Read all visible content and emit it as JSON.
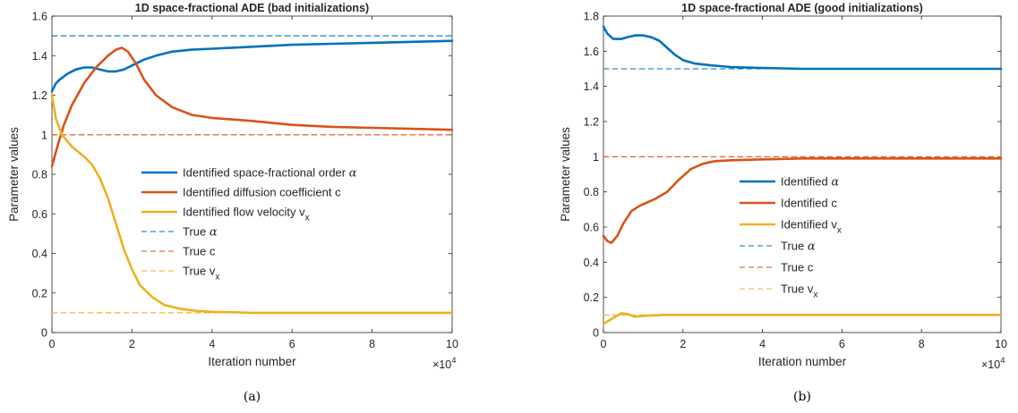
{
  "chart_data": [
    {
      "type": "line",
      "title": "1D space-fractional ADE (bad initializations)",
      "xlabel": "Iteration number",
      "ylabel": "Parameter values",
      "x_multiplier": "×10",
      "x_exponent": "4",
      "caption": "(a)",
      "xlim": [
        0,
        10
      ],
      "ylim": [
        0,
        1.6
      ],
      "xticks": [
        "0",
        "2",
        "4",
        "6",
        "8",
        "10"
      ],
      "yticks": [
        "0",
        "0.2",
        "0.4",
        "0.6",
        "0.8",
        "1",
        "1.2",
        "1.4",
        "1.6"
      ],
      "legend_position": "center-right",
      "series": [
        {
          "name": "Identified space-fractional order α",
          "legend_main": "Identified space-fractional order ",
          "legend_greek": "α",
          "legend_sub": "",
          "style": "solid",
          "color": "#0072BD",
          "points": [
            [
              0,
              1.22
            ],
            [
              0.1,
              1.26
            ],
            [
              0.2,
              1.28
            ],
            [
              0.4,
              1.31
            ],
            [
              0.6,
              1.33
            ],
            [
              0.8,
              1.34
            ],
            [
              1.0,
              1.34
            ],
            [
              1.2,
              1.33
            ],
            [
              1.4,
              1.32
            ],
            [
              1.6,
              1.32
            ],
            [
              1.8,
              1.33
            ],
            [
              2.0,
              1.35
            ],
            [
              2.3,
              1.38
            ],
            [
              2.6,
              1.4
            ],
            [
              3.0,
              1.42
            ],
            [
              3.5,
              1.43
            ],
            [
              4,
              1.435
            ],
            [
              5,
              1.445
            ],
            [
              6,
              1.455
            ],
            [
              7,
              1.46
            ],
            [
              8,
              1.465
            ],
            [
              9,
              1.47
            ],
            [
              10,
              1.475
            ]
          ]
        },
        {
          "name": "Identified diffusion coefficient c",
          "legend_main": "Identified diffusion coefficient c",
          "legend_greek": "",
          "legend_sub": "",
          "style": "solid",
          "color": "#D95319",
          "points": [
            [
              0,
              0.84
            ],
            [
              0.15,
              0.95
            ],
            [
              0.3,
              1.05
            ],
            [
              0.5,
              1.15
            ],
            [
              0.8,
              1.26
            ],
            [
              1.1,
              1.34
            ],
            [
              1.4,
              1.4
            ],
            [
              1.6,
              1.43
            ],
            [
              1.75,
              1.44
            ],
            [
              1.9,
              1.42
            ],
            [
              2.1,
              1.36
            ],
            [
              2.3,
              1.28
            ],
            [
              2.6,
              1.2
            ],
            [
              3.0,
              1.14
            ],
            [
              3.5,
              1.1
            ],
            [
              4,
              1.085
            ],
            [
              5,
              1.07
            ],
            [
              6,
              1.05
            ],
            [
              7,
              1.04
            ],
            [
              8,
              1.035
            ],
            [
              9,
              1.03
            ],
            [
              10,
              1.025
            ]
          ]
        },
        {
          "name": "Identified flow velocity v_x",
          "legend_main": "Identified flow velocity v",
          "legend_greek": "",
          "legend_sub": "x",
          "style": "solid",
          "color": "#EDB120",
          "points": [
            [
              0,
              1.2
            ],
            [
              0.1,
              1.08
            ],
            [
              0.25,
              1.0
            ],
            [
              0.5,
              0.94
            ],
            [
              0.8,
              0.89
            ],
            [
              1.0,
              0.85
            ],
            [
              1.2,
              0.78
            ],
            [
              1.4,
              0.68
            ],
            [
              1.6,
              0.55
            ],
            [
              1.8,
              0.42
            ],
            [
              2.0,
              0.32
            ],
            [
              2.2,
              0.24
            ],
            [
              2.5,
              0.18
            ],
            [
              2.8,
              0.14
            ],
            [
              3.2,
              0.12
            ],
            [
              3.6,
              0.11
            ],
            [
              4,
              0.105
            ],
            [
              5,
              0.1
            ],
            [
              6,
              0.1
            ],
            [
              8,
              0.1
            ],
            [
              10,
              0.1
            ]
          ]
        },
        {
          "name": "True α",
          "legend_main": "True ",
          "legend_greek": "α",
          "legend_sub": "",
          "style": "dashed",
          "color": "#0072BD",
          "points": [
            [
              0,
              1.5
            ],
            [
              10,
              1.5
            ]
          ]
        },
        {
          "name": "True c",
          "legend_main": "True c",
          "legend_greek": "",
          "legend_sub": "",
          "style": "dashed",
          "color": "#D95319",
          "points": [
            [
              0,
              1.0
            ],
            [
              10,
              1.0
            ]
          ]
        },
        {
          "name": "True v_x",
          "legend_main": "True v",
          "legend_greek": "",
          "legend_sub": "x",
          "style": "dashed",
          "color": "#EDB120",
          "points": [
            [
              0,
              0.1
            ],
            [
              10,
              0.1
            ]
          ]
        }
      ]
    },
    {
      "type": "line",
      "title": "1D space-fractional ADE (good initializations)",
      "xlabel": "Iteration number",
      "ylabel": "Parameter values",
      "x_multiplier": "×10",
      "x_exponent": "4",
      "caption": "(b)",
      "xlim": [
        0,
        10
      ],
      "ylim": [
        0,
        1.8
      ],
      "xticks": [
        "0",
        "2",
        "4",
        "6",
        "8",
        "10"
      ],
      "yticks": [
        "0",
        "0.2",
        "0.4",
        "0.6",
        "0.8",
        "1",
        "1.2",
        "1.4",
        "1.6",
        "1.8"
      ],
      "legend_position": "center-right",
      "series": [
        {
          "name": "Identified α",
          "legend_main": "Identified ",
          "legend_greek": "α",
          "legend_sub": "",
          "style": "solid",
          "color": "#0072BD",
          "points": [
            [
              0,
              1.74
            ],
            [
              0.1,
              1.7
            ],
            [
              0.25,
              1.67
            ],
            [
              0.45,
              1.67
            ],
            [
              0.6,
              1.68
            ],
            [
              0.8,
              1.69
            ],
            [
              1.0,
              1.69
            ],
            [
              1.2,
              1.68
            ],
            [
              1.4,
              1.66
            ],
            [
              1.6,
              1.62
            ],
            [
              1.8,
              1.58
            ],
            [
              2.0,
              1.55
            ],
            [
              2.3,
              1.53
            ],
            [
              2.7,
              1.52
            ],
            [
              3.2,
              1.51
            ],
            [
              4,
              1.505
            ],
            [
              5,
              1.5
            ],
            [
              6,
              1.5
            ],
            [
              8,
              1.5
            ],
            [
              10,
              1.5
            ]
          ]
        },
        {
          "name": "Identified c",
          "legend_main": "Identified c",
          "legend_greek": "",
          "legend_sub": "",
          "style": "solid",
          "color": "#D95319",
          "points": [
            [
              0,
              0.55
            ],
            [
              0.1,
              0.52
            ],
            [
              0.2,
              0.51
            ],
            [
              0.35,
              0.55
            ],
            [
              0.5,
              0.62
            ],
            [
              0.7,
              0.69
            ],
            [
              0.9,
              0.72
            ],
            [
              1.1,
              0.74
            ],
            [
              1.3,
              0.76
            ],
            [
              1.6,
              0.8
            ],
            [
              1.9,
              0.87
            ],
            [
              2.2,
              0.93
            ],
            [
              2.5,
              0.96
            ],
            [
              2.8,
              0.975
            ],
            [
              3.2,
              0.98
            ],
            [
              4,
              0.985
            ],
            [
              5,
              0.99
            ],
            [
              6,
              0.99
            ],
            [
              8,
              0.99
            ],
            [
              10,
              0.99
            ]
          ]
        },
        {
          "name": "Identified v_x",
          "legend_main": "Identified v",
          "legend_greek": "",
          "legend_sub": "x",
          "style": "solid",
          "color": "#EDB120",
          "points": [
            [
              0,
              0.05
            ],
            [
              0.15,
              0.07
            ],
            [
              0.3,
              0.09
            ],
            [
              0.45,
              0.11
            ],
            [
              0.6,
              0.105
            ],
            [
              0.8,
              0.09
            ],
            [
              1.0,
              0.095
            ],
            [
              1.5,
              0.1
            ],
            [
              2,
              0.1
            ],
            [
              4,
              0.1
            ],
            [
              6,
              0.1
            ],
            [
              8,
              0.1
            ],
            [
              10,
              0.1
            ]
          ]
        },
        {
          "name": "True α",
          "legend_main": "True ",
          "legend_greek": "α",
          "legend_sub": "",
          "style": "dashed",
          "color": "#0072BD",
          "points": [
            [
              0,
              1.5
            ],
            [
              10,
              1.5
            ]
          ]
        },
        {
          "name": "True c",
          "legend_main": "True c",
          "legend_greek": "",
          "legend_sub": "",
          "style": "dashed",
          "color": "#D95319",
          "points": [
            [
              0,
              1.0
            ],
            [
              10,
              1.0
            ]
          ]
        },
        {
          "name": "True v_x",
          "legend_main": "True v",
          "legend_greek": "",
          "legend_sub": "x",
          "style": "dashed",
          "color": "#EDB120",
          "points": [
            [
              0,
              0.1
            ],
            [
              10,
              0.1
            ]
          ]
        }
      ]
    }
  ]
}
